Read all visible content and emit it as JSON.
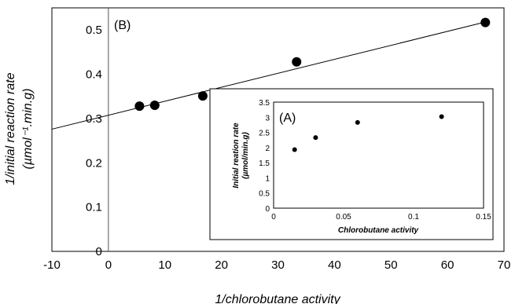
{
  "chart_data": [
    {
      "type": "scatter",
      "panel_label": "(B)",
      "xlabel": "1/chlorobutane activity",
      "ylabel_main": "1/initial reaction rate",
      "ylabel_units": "(µmol⁻¹.min.g)",
      "xlim": [
        -10,
        70
      ],
      "ylim": [
        0,
        0.55
      ],
      "xticks": [
        "-10",
        "0",
        "10",
        "20",
        "30",
        "40",
        "50",
        "60",
        "70"
      ],
      "xtick_values": [
        -10,
        0,
        10,
        20,
        30,
        40,
        50,
        60,
        70
      ],
      "yticks": [
        "0",
        "0.1",
        "0.2",
        "0.3",
        "0.4",
        "0.5"
      ],
      "ytick_values": [
        0,
        0.1,
        0.2,
        0.3,
        0.4,
        0.5
      ],
      "series": [
        {
          "x": [
            5.5,
            8.2,
            16.7,
            33.3,
            66.7
          ],
          "y": [
            0.328,
            0.33,
            0.351,
            0.428,
            0.517
          ]
        }
      ],
      "trendline": {
        "x": [
          -10,
          66.7
        ],
        "y": [
          0.276,
          0.518
        ]
      },
      "grid": false,
      "marker_color": "#000000"
    },
    {
      "type": "scatter",
      "panel_label": "(A)",
      "xlabel": "Chlorobutane activity",
      "ylabel_line1": "Initial reation rate",
      "ylabel_line2": "(µmol/min.g)",
      "xlim": [
        0,
        0.15
      ],
      "ylim": [
        0,
        3.5
      ],
      "xticks": [
        "0",
        "0.05",
        "0.1",
        "0.15"
      ],
      "xtick_values": [
        0,
        0.05,
        0.1,
        0.15
      ],
      "yticks": [
        "0",
        "0.5",
        "1",
        "1.5",
        "2",
        "2.5",
        "3",
        "3.5"
      ],
      "ytick_values": [
        0,
        0.5,
        1,
        1.5,
        2,
        2.5,
        3,
        3.5
      ],
      "series": [
        {
          "x": [
            0.015,
            0.03,
            0.06,
            0.12
          ],
          "y": [
            1.93,
            2.33,
            2.83,
            3.02
          ]
        }
      ],
      "grid": false,
      "marker_color": "#000000"
    }
  ]
}
